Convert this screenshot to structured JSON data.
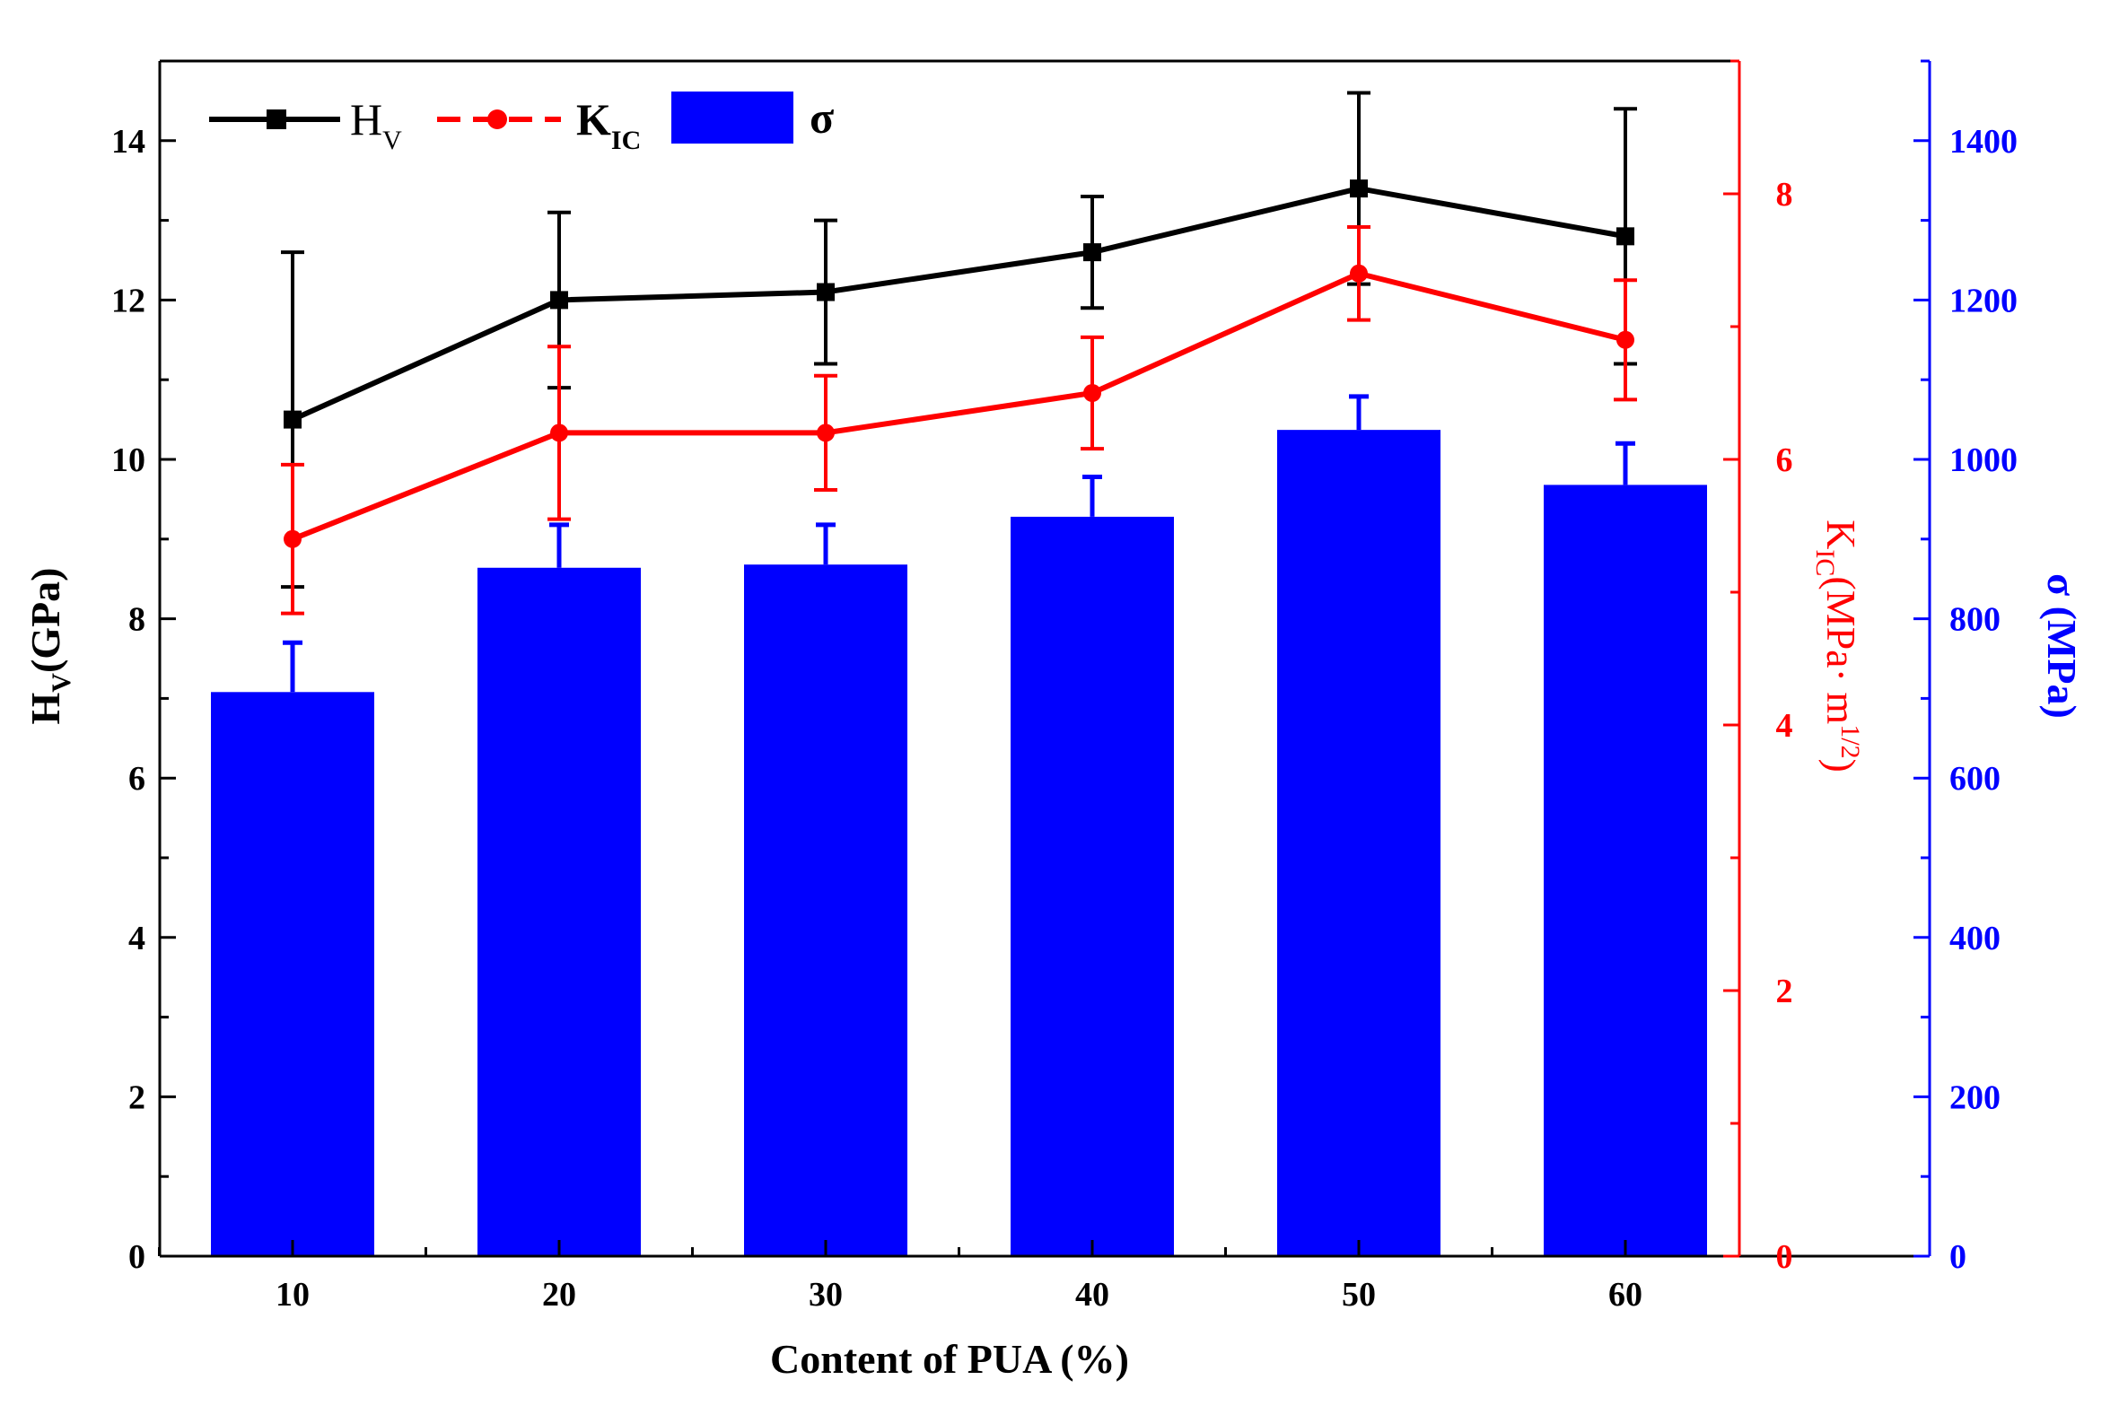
{
  "chart_data": {
    "type": "bar+line",
    "x_label": "Content of PUA (%)",
    "categories": [
      "10",
      "20",
      "30",
      "40",
      "50",
      "60"
    ],
    "bar_series": {
      "name": "σ",
      "axis": "right-outer",
      "color": "#0000ff",
      "values": [
        708,
        864,
        868,
        928,
        1037,
        968
      ],
      "errors": [
        62,
        54,
        50,
        50,
        42,
        52
      ]
    },
    "line_series": [
      {
        "name": "H",
        "subscript": "V",
        "axis": "left",
        "color": "#000000",
        "marker": "square",
        "values": [
          10.5,
          12.0,
          12.1,
          12.6,
          13.4,
          12.8
        ],
        "errors": [
          2.1,
          1.1,
          0.9,
          0.7,
          1.2,
          1.6
        ]
      },
      {
        "name": "K",
        "subscript": "IC",
        "axis": "right-inner",
        "color": "#ff0000",
        "marker": "circle",
        "values": [
          5.4,
          6.2,
          6.2,
          6.5,
          7.4,
          6.9
        ],
        "errors": [
          0.56,
          0.65,
          0.43,
          0.42,
          0.35,
          0.45
        ]
      }
    ],
    "axes": {
      "left": {
        "title_main": "H",
        "title_sub": "V",
        "title_rest": "(GPa)",
        "range": [
          0,
          15
        ],
        "ticks": [
          "0",
          "2",
          "4",
          "6",
          "8",
          "10",
          "12",
          "14"
        ],
        "color": "#000000"
      },
      "right_inner": {
        "title_main": "K",
        "title_sub": "IC",
        "title_rest": "(MPa· m",
        "title_sup": "1/2",
        "title_end": ")",
        "range": [
          0,
          9
        ],
        "ticks": [
          "0",
          "2",
          "4",
          "6",
          "8"
        ],
        "color": "#ff0000"
      },
      "right_outer": {
        "title": "σ (MPa)",
        "range": [
          0,
          1500
        ],
        "ticks": [
          "0",
          "200",
          "400",
          "600",
          "800",
          "1000",
          "1200",
          "1400"
        ],
        "color": "#0000ff"
      }
    },
    "legend": {
      "position": "top-left",
      "entries": [
        {
          "label": "H",
          "sub": "V"
        },
        {
          "label": "K",
          "sub": "IC"
        },
        {
          "label": "σ",
          "sub": ""
        }
      ]
    }
  }
}
